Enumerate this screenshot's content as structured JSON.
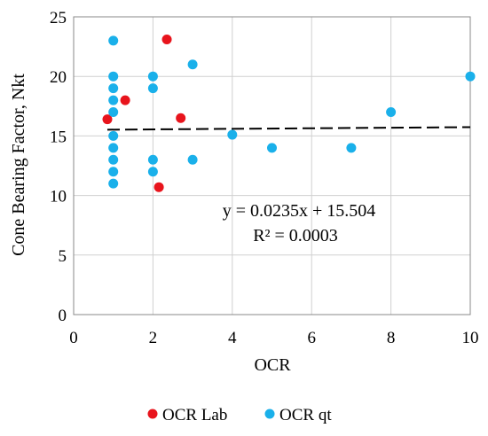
{
  "chart_data": {
    "type": "scatter",
    "xlabel": "OCR",
    "ylabel": "Cone Bearing Factor, Nkt",
    "xlim": [
      0,
      10
    ],
    "ylim": [
      0,
      25
    ],
    "x_ticks": [
      "0",
      "2",
      "4",
      "6",
      "8",
      "10"
    ],
    "y_ticks": [
      "0",
      "5",
      "10",
      "15",
      "20",
      "25"
    ],
    "grid": true,
    "legend_position": "bottom",
    "series": [
      {
        "name": "OCR Lab",
        "color": "#e8141c",
        "points": [
          {
            "x": 0.85,
            "y": 16.4
          },
          {
            "x": 1.3,
            "y": 18.0
          },
          {
            "x": 2.15,
            "y": 10.7
          },
          {
            "x": 2.35,
            "y": 23.1
          },
          {
            "x": 2.7,
            "y": 16.5
          }
        ]
      },
      {
        "name": "OCR qt",
        "color": "#1ab0ea",
        "points": [
          {
            "x": 1,
            "y": 23.0
          },
          {
            "x": 1,
            "y": 20.0
          },
          {
            "x": 1,
            "y": 19.0
          },
          {
            "x": 1,
            "y": 18.0
          },
          {
            "x": 1,
            "y": 17.0
          },
          {
            "x": 1,
            "y": 15.0
          },
          {
            "x": 1,
            "y": 14.0
          },
          {
            "x": 1,
            "y": 13.0
          },
          {
            "x": 1,
            "y": 12.0
          },
          {
            "x": 1,
            "y": 11.0
          },
          {
            "x": 2,
            "y": 20.0
          },
          {
            "x": 2,
            "y": 19.0
          },
          {
            "x": 2,
            "y": 13.0
          },
          {
            "x": 2,
            "y": 12.0
          },
          {
            "x": 3,
            "y": 21.0
          },
          {
            "x": 3,
            "y": 13.0
          },
          {
            "x": 4,
            "y": 15.1
          },
          {
            "x": 5,
            "y": 14.0
          },
          {
            "x": 7,
            "y": 14.0
          },
          {
            "x": 8,
            "y": 17.0
          },
          {
            "x": 10,
            "y": 20.0
          }
        ]
      }
    ],
    "trendline": {
      "slope": 0.0235,
      "intercept": 15.504,
      "x_range": [
        0.85,
        10
      ],
      "style": "dashed",
      "color": "#000000",
      "equation": "y = 0.0235x + 15.504",
      "r_squared": "R² = 0.0003"
    }
  }
}
